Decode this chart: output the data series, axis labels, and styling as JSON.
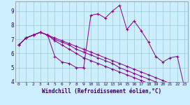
{
  "xlabel": "Windchill (Refroidissement éolien,°C)",
  "ylabel": "",
  "bg_color": "#cceeff",
  "line_color": "#880088",
  "grid_color": "#99cccc",
  "xlim": [
    -0.5,
    23.5
  ],
  "ylim": [
    4,
    9.7
  ],
  "yticks": [
    4,
    5,
    6,
    7,
    8,
    9
  ],
  "xticks": [
    0,
    1,
    2,
    3,
    4,
    5,
    6,
    7,
    8,
    9,
    10,
    11,
    12,
    13,
    14,
    15,
    16,
    17,
    18,
    19,
    20,
    21,
    22,
    23
  ],
  "series": [
    [
      6.6,
      7.1,
      7.3,
      7.5,
      7.3,
      5.8,
      5.4,
      5.3,
      5.0,
      5.0,
      8.7,
      8.8,
      8.5,
      9.0,
      9.4,
      7.7,
      8.3,
      7.6,
      6.8,
      5.8,
      5.4,
      5.7,
      5.8,
      3.6
    ],
    [
      6.6,
      7.1,
      7.3,
      7.5,
      7.3,
      7.1,
      6.9,
      6.7,
      6.5,
      6.3,
      6.1,
      5.9,
      5.7,
      5.5,
      5.3,
      5.1,
      4.9,
      4.7,
      4.5,
      4.3,
      4.1,
      3.9,
      3.7,
      3.5
    ],
    [
      6.6,
      7.1,
      7.3,
      7.5,
      7.3,
      7.0,
      6.8,
      6.6,
      6.3,
      6.1,
      5.9,
      5.7,
      5.5,
      5.3,
      5.0,
      4.8,
      4.6,
      4.4,
      4.2,
      4.0,
      3.8,
      3.7,
      3.6,
      3.5
    ],
    [
      6.6,
      7.1,
      7.3,
      7.5,
      7.3,
      6.9,
      6.6,
      6.3,
      6.0,
      5.7,
      5.5,
      5.3,
      5.1,
      4.9,
      4.7,
      4.5,
      4.3,
      4.1,
      3.9,
      3.7,
      3.5,
      3.4,
      3.3,
      3.2
    ]
  ]
}
